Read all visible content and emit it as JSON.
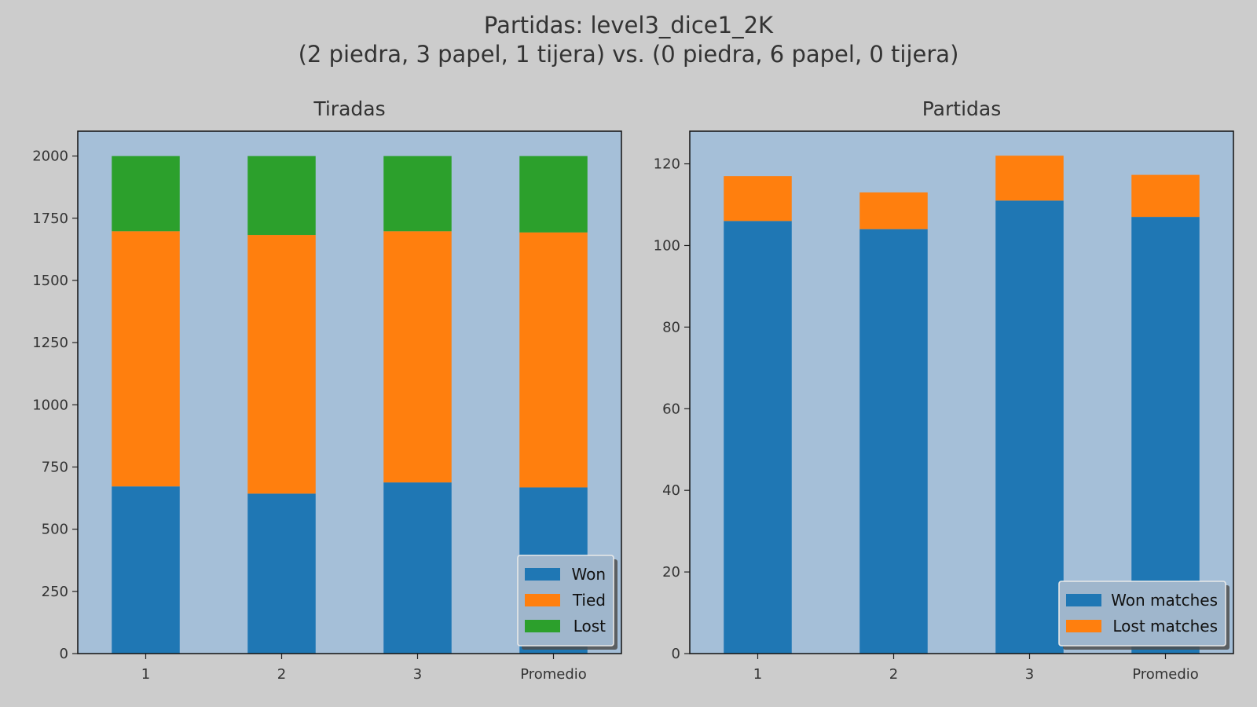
{
  "figure": {
    "title_line1": "Partidas: level3_dice1_2K",
    "title_line2": "(2 piedra, 3 papel, 1 tijera) vs. (0 piedra, 6 papel, 0 tijera)"
  },
  "colors": {
    "background": "#cccccc",
    "axes_bg": "#a5bfd8",
    "blue": "#1f77b4",
    "orange": "#ff7f0e",
    "green": "#2ca02c"
  },
  "chart_data": [
    {
      "type": "bar",
      "stacked": true,
      "title": "Tiradas",
      "categories": [
        "1",
        "2",
        "3",
        "Promedio"
      ],
      "series": [
        {
          "name": "Won",
          "values": [
            672,
            643,
            688,
            668
          ]
        },
        {
          "name": "Tied",
          "values": [
            1026,
            1040,
            1010,
            1025
          ]
        },
        {
          "name": "Lost",
          "values": [
            302,
            317,
            302,
            307
          ]
        }
      ],
      "ylim": [
        0,
        2100
      ],
      "yticks": [
        0,
        250,
        500,
        750,
        1000,
        1250,
        1500,
        1750,
        2000
      ],
      "legend": "lower-right",
      "grid": false
    },
    {
      "type": "bar",
      "stacked": true,
      "title": "Partidas",
      "categories": [
        "1",
        "2",
        "3",
        "Promedio"
      ],
      "series": [
        {
          "name": "Won matches",
          "values": [
            106,
            104,
            111,
            107
          ]
        },
        {
          "name": "Lost matches",
          "values": [
            11,
            9,
            11,
            10.3
          ]
        }
      ],
      "ylim": [
        0,
        128
      ],
      "yticks": [
        0,
        20,
        40,
        60,
        80,
        100,
        120
      ],
      "legend": "lower-right",
      "grid": false
    }
  ]
}
